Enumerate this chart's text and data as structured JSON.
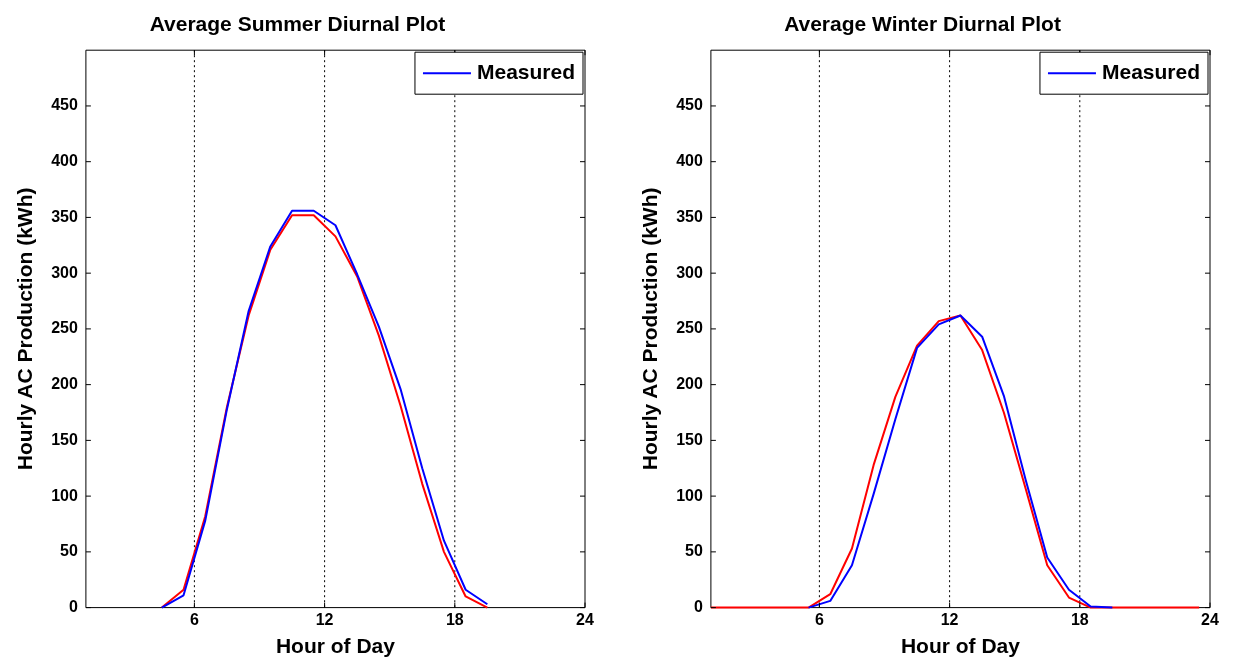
{
  "chart_data": [
    {
      "type": "line",
      "title": "Average Summer Diurnal Plot",
      "xlabel": "Hour of Day",
      "ylabel": "Hourly AC Production (kWh)",
      "xlim": [
        1,
        24
      ],
      "xticks": [
        6,
        12,
        18,
        24
      ],
      "ylim": [
        0,
        500
      ],
      "yticks": [
        0,
        50,
        100,
        150,
        200,
        250,
        300,
        350,
        400,
        450
      ],
      "grid": false,
      "legend": "top right",
      "line_style": "solid",
      "marker": "none",
      "x": [
        4.5,
        5.5,
        6.5,
        7.5,
        8.5,
        9.5,
        10.5,
        11.5,
        12.5,
        13.5,
        14.5,
        15.5,
        16.5,
        17.5,
        18.5,
        19.5
      ],
      "series": [
        {
          "name": "Measured",
          "color": "#0000ff",
          "values": [
            0,
            11,
            78,
            178,
            266,
            324,
            356,
            356,
            343,
            299,
            252,
            196,
            125,
            60,
            16,
            3
          ]
        },
        {
          "color": "#ff0000",
          "values": [
            0,
            16,
            82,
            180,
            262,
            321,
            352,
            352,
            333,
            297,
            244,
            181,
            111,
            50,
            10,
            0
          ]
        }
      ],
      "ref_lines": [
        {
          "axis": "x",
          "value": 6,
          "color": "#000000",
          "line_style": "dotted"
        },
        {
          "axis": "x",
          "value": 12,
          "color": "#000000",
          "line_style": "dotted"
        },
        {
          "axis": "x",
          "value": 18,
          "color": "#000000",
          "line_style": "dotted"
        }
      ]
    },
    {
      "type": "line",
      "title": "Average Winter Diurnal Plot",
      "xlabel": "Hour of Day",
      "ylabel": "Hourly AC Production (kWh)",
      "xlim": [
        1,
        24
      ],
      "xticks": [
        6,
        12,
        18,
        24
      ],
      "ylim": [
        0,
        500
      ],
      "yticks": [
        0,
        50,
        100,
        150,
        200,
        250,
        300,
        350,
        400,
        450
      ],
      "grid": false,
      "legend": "top right",
      "line_style": "solid",
      "marker": "none",
      "x": [
        1,
        1.5,
        2.5,
        3.5,
        4.5,
        5.5,
        6.5,
        7.5,
        8.5,
        9.5,
        10.5,
        11.5,
        12.5,
        13.5,
        14.5,
        15.5,
        16.5,
        17.5,
        18.5,
        19.5,
        20.5,
        21.5,
        22.5,
        23.5
      ],
      "series": [
        {
          "name": "Measured",
          "color": "#0000ff",
          "values": [
            null,
            null,
            null,
            null,
            null,
            0,
            6,
            38,
            102,
            169,
            233,
            254,
            262,
            243,
            190,
            115,
            45,
            16,
            1,
            0,
            null,
            null,
            null,
            null
          ]
        },
        {
          "color": "#ff0000",
          "values": [
            0,
            0,
            0,
            0,
            0,
            0,
            12,
            53,
            128,
            189,
            235,
            257,
            262,
            231,
            175,
            107,
            38,
            9,
            0,
            0,
            0,
            0,
            0,
            0
          ]
        }
      ],
      "ref_lines": [
        {
          "axis": "x",
          "value": 6,
          "color": "#000000",
          "line_style": "dotted"
        },
        {
          "axis": "x",
          "value": 12,
          "color": "#000000",
          "line_style": "dotted"
        },
        {
          "axis": "x",
          "value": 18,
          "color": "#000000",
          "line_style": "dotted"
        }
      ]
    }
  ]
}
